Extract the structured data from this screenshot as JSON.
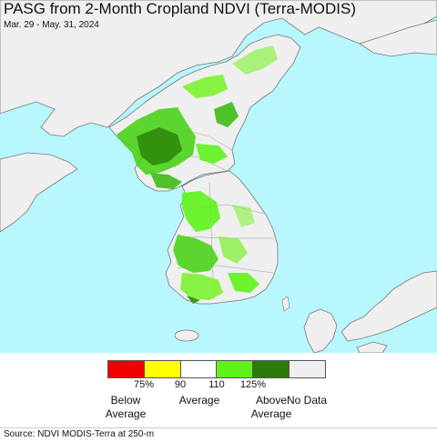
{
  "header": {
    "title": "PASG from 2-Month Cropland NDVI (Terra-MODIS)",
    "date_range": "Mar. 29 - May. 31, 2024"
  },
  "map": {
    "colors": {
      "sea": "#b9f7ff",
      "land": "#efefef",
      "border": "#777777",
      "green_light": "#7bf22e",
      "green_mid": "#3cbd12",
      "green_dark": "#1f7a05"
    }
  },
  "legend": {
    "swatches": [
      {
        "label": "Below 75%",
        "color": "#f00000"
      },
      {
        "label": "75-90%",
        "color": "#ffff00"
      },
      {
        "label": "90-110%",
        "color": "#ffffff"
      },
      {
        "label": "110-125%",
        "color": "#5ef21a"
      },
      {
        "label": "Above 125%",
        "color": "#2d7a0a"
      },
      {
        "label": "No Data",
        "color": "#f0eef0"
      }
    ],
    "ticks": [
      "75%",
      "90",
      "110",
      "125%"
    ],
    "categories": {
      "below": "Below\nAverage",
      "average": "Average",
      "above": "Above\nAverage",
      "nodata": "No Data"
    }
  },
  "footer": {
    "source": "Source: NDVI MODIS-Terra at 250-m"
  }
}
